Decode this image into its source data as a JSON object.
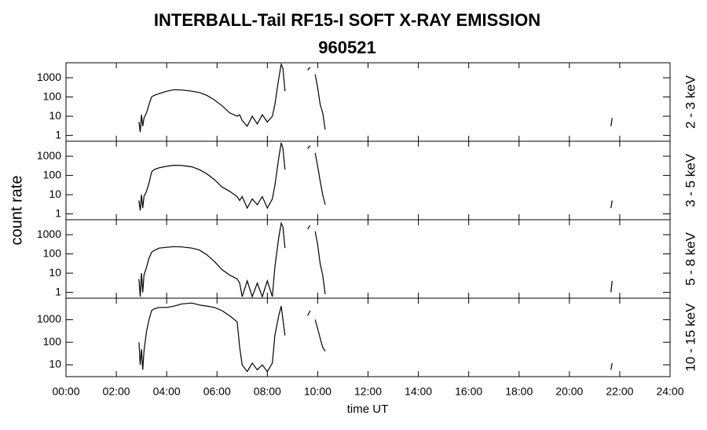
{
  "figure": {
    "title": "INTERBALL-Tail RF15-I SOFT X-RAY EMISSION",
    "subtitle": "960521",
    "y_label": "count rate",
    "x_label": "time UT"
  },
  "chart_data": [
    {
      "type": "line",
      "panel_label": "2 - 3 keV",
      "log": true,
      "xlim": [
        0,
        24
      ],
      "ylim": [
        0.5,
        6000
      ],
      "yticks": [
        1,
        10,
        100,
        1000
      ],
      "x": [
        2.9,
        2.95,
        3.0,
        3.05,
        3.1,
        3.2,
        3.3,
        3.4,
        3.5,
        3.7,
        4.0,
        4.3,
        4.6,
        5.0,
        5.3,
        5.6,
        5.9,
        6.2,
        6.5,
        6.8,
        6.9,
        7.0,
        7.2,
        7.4,
        7.6,
        7.8,
        8.0,
        8.2,
        8.3,
        8.45,
        8.55,
        8.62,
        8.7,
        9.0,
        9.6,
        9.7,
        9.8,
        9.9,
        10.0,
        10.1,
        10.2,
        10.3,
        12,
        21.65,
        21.7
      ],
      "series": [
        {
          "color": "#000000",
          "values": [
            5,
            1.5,
            12,
            3,
            8,
            15,
            40,
            100,
            120,
            150,
            200,
            240,
            230,
            200,
            170,
            120,
            70,
            35,
            15,
            10,
            12,
            6,
            3,
            10,
            4,
            12,
            5,
            10,
            40,
            900,
            5000,
            3000,
            200,
            null,
            2500,
            3500,
            null,
            1500,
            300,
            40,
            15,
            2,
            null,
            3,
            8
          ]
        }
      ]
    },
    {
      "type": "line",
      "panel_label": "3 - 5 keV",
      "log": true,
      "xlim": [
        0,
        24
      ],
      "ylim": [
        0.5,
        6000
      ],
      "yticks": [
        1,
        10,
        100,
        1000
      ],
      "x": [
        2.9,
        2.95,
        3.0,
        3.05,
        3.1,
        3.2,
        3.3,
        3.4,
        3.5,
        3.7,
        4.0,
        4.3,
        4.6,
        5.0,
        5.3,
        5.6,
        5.9,
        6.2,
        6.5,
        6.8,
        6.9,
        7.0,
        7.2,
        7.4,
        7.6,
        7.8,
        8.0,
        8.2,
        8.3,
        8.45,
        8.55,
        8.62,
        8.7,
        9.0,
        9.6,
        9.7,
        9.8,
        9.9,
        10.0,
        10.1,
        10.2,
        10.3,
        12,
        21.65,
        21.7
      ],
      "series": [
        {
          "color": "#000000",
          "values": [
            5,
            1.5,
            10,
            2,
            8,
            15,
            40,
            150,
            200,
            250,
            300,
            340,
            330,
            280,
            200,
            120,
            60,
            25,
            15,
            8,
            5,
            8,
            2,
            6,
            3,
            8,
            2,
            6,
            30,
            800,
            5000,
            2500,
            200,
            null,
            2500,
            3500,
            null,
            1500,
            300,
            50,
            10,
            3,
            null,
            2,
            5
          ]
        }
      ]
    },
    {
      "type": "line",
      "panel_label": "5 - 8 keV",
      "log": true,
      "xlim": [
        0,
        24
      ],
      "ylim": [
        0.5,
        6000
      ],
      "yticks": [
        1,
        10,
        100,
        1000
      ],
      "x": [
        2.9,
        2.95,
        3.0,
        3.05,
        3.1,
        3.2,
        3.3,
        3.4,
        3.5,
        3.7,
        4.0,
        4.3,
        4.6,
        5.0,
        5.3,
        5.6,
        5.9,
        6.2,
        6.5,
        6.8,
        6.9,
        7.0,
        7.2,
        7.4,
        7.6,
        7.8,
        8.0,
        8.2,
        8.3,
        8.45,
        8.55,
        8.62,
        8.7,
        9.0,
        9.6,
        9.7,
        9.8,
        9.9,
        10.0,
        10.1,
        10.2,
        10.3,
        12,
        21.65,
        21.7
      ],
      "series": [
        {
          "color": "#000000",
          "values": [
            5,
            0.6,
            10,
            1,
            8,
            20,
            60,
            120,
            150,
            200,
            220,
            240,
            230,
            200,
            160,
            90,
            40,
            15,
            8,
            5,
            3,
            0.6,
            4,
            0.6,
            3,
            0.6,
            4,
            0.6,
            20,
            700,
            4000,
            2500,
            200,
            null,
            2000,
            3000,
            null,
            1500,
            300,
            30,
            8,
            0.8,
            null,
            1,
            4
          ]
        }
      ]
    },
    {
      "type": "line",
      "panel_label": "10 - 15 keV",
      "log": true,
      "xlim": [
        0,
        24
      ],
      "ylim": [
        3,
        9000
      ],
      "yticks": [
        10,
        100,
        1000
      ],
      "x": [
        2.9,
        2.95,
        3.0,
        3.05,
        3.1,
        3.2,
        3.3,
        3.4,
        3.5,
        3.7,
        4.0,
        4.3,
        4.6,
        5.0,
        5.3,
        5.6,
        5.9,
        6.2,
        6.5,
        6.8,
        6.9,
        7.0,
        7.2,
        7.4,
        7.6,
        7.8,
        8.0,
        8.2,
        8.3,
        8.45,
        8.55,
        8.62,
        8.7,
        9.0,
        9.6,
        9.7,
        9.8,
        9.9,
        10.0,
        10.1,
        10.2,
        10.3,
        12,
        21.65,
        21.7
      ],
      "series": [
        {
          "color": "#000000",
          "values": [
            100,
            10,
            50,
            6,
            40,
            300,
            1000,
            2500,
            3000,
            3500,
            3500,
            4000,
            5000,
            5500,
            4500,
            4000,
            3500,
            2500,
            1500,
            800,
            60,
            10,
            5,
            12,
            6,
            10,
            5,
            12,
            200,
            1500,
            4000,
            1000,
            200,
            null,
            1500,
            2500,
            null,
            1000,
            400,
            150,
            60,
            40,
            null,
            6,
            12
          ]
        }
      ],
      "xticks": [
        {
          "value": 0,
          "label": "00:00"
        },
        {
          "value": 2,
          "label": "02:00"
        },
        {
          "value": 4,
          "label": "04:00"
        },
        {
          "value": 6,
          "label": "06:00"
        },
        {
          "value": 8,
          "label": "08:00"
        },
        {
          "value": 10,
          "label": "10:00"
        },
        {
          "value": 12,
          "label": "12:00"
        },
        {
          "value": 14,
          "label": "14:00"
        },
        {
          "value": 16,
          "label": "16:00"
        },
        {
          "value": 18,
          "label": "18:00"
        },
        {
          "value": 20,
          "label": "20:00"
        },
        {
          "value": 22,
          "label": "22:00"
        },
        {
          "value": 24,
          "label": "24:00"
        }
      ]
    }
  ]
}
